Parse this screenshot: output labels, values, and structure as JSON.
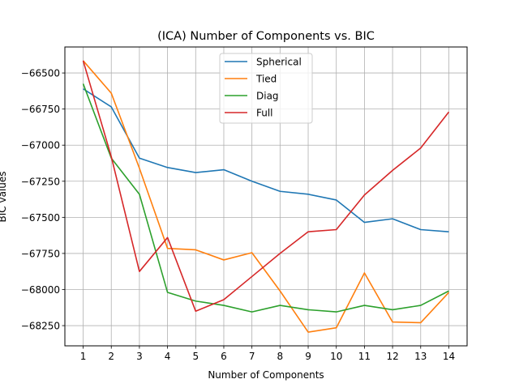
{
  "chart_data": {
    "type": "line",
    "title": "(ICA) Number of Components vs. BIC",
    "xlabel": "Number of Components",
    "ylabel": "BIC values",
    "x": [
      1,
      2,
      3,
      4,
      5,
      6,
      7,
      8,
      9,
      10,
      11,
      12,
      13,
      14
    ],
    "xlim": [
      0.35,
      14.65
    ],
    "ylim": [
      -68390,
      -66320
    ],
    "yticks": [
      -66500,
      -66750,
      -67000,
      -67250,
      -67500,
      -67750,
      -68000,
      -68250
    ],
    "ytick_labels": [
      "−66500",
      "−66750",
      "−67000",
      "−67250",
      "−67500",
      "−67750",
      "−68000",
      "−68250"
    ],
    "xtick_labels": [
      "1",
      "2",
      "3",
      "4",
      "5",
      "6",
      "7",
      "8",
      "9",
      "10",
      "11",
      "12",
      "13",
      "14"
    ],
    "grid": true,
    "legend_position": "upper center",
    "series": [
      {
        "name": "Spherical",
        "color": "#1f77b4",
        "values": [
          -66610,
          -66735,
          -67090,
          -67155,
          -67190,
          -67170,
          -67250,
          -67320,
          -67340,
          -67380,
          -67535,
          -67510,
          -67585,
          -67600
        ]
      },
      {
        "name": "Tied",
        "color": "#ff7f0e",
        "values": [
          -66415,
          -66640,
          -67160,
          -67715,
          -67725,
          -67795,
          -67745,
          -68010,
          -68295,
          -68265,
          -67885,
          -68225,
          -68230,
          -68020
        ]
      },
      {
        "name": "Diag",
        "color": "#2ca02c",
        "values": [
          -66575,
          -67090,
          -67340,
          -68020,
          -68080,
          -68110,
          -68155,
          -68110,
          -68140,
          -68155,
          -68110,
          -68140,
          -68110,
          -68010
        ]
      },
      {
        "name": "Full",
        "color": "#d62728",
        "values": [
          -66415,
          -67080,
          -67875,
          -67640,
          -68150,
          -68070,
          -67910,
          -67750,
          -67600,
          -67585,
          -67345,
          -67175,
          -67020,
          -66770
        ]
      }
    ]
  }
}
